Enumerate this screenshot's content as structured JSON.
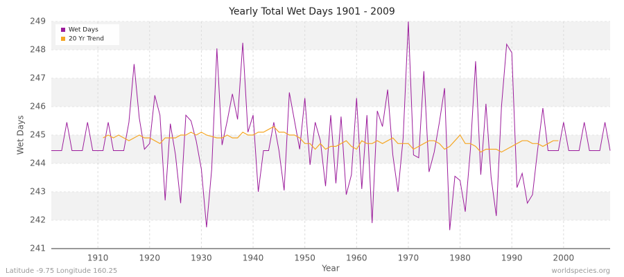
{
  "chart_data": {
    "type": "line",
    "title": "Yearly Total Wet Days 1901 - 2009",
    "x_label": "Year",
    "y_label": "Wet Days",
    "footer_left": "Latitude -9.75 Longitude 160.25",
    "footer_right": "worldspecies.org",
    "legend": "top-left",
    "grid": true,
    "xlim": [
      1901,
      2009
    ],
    "xticks": [
      1910,
      1920,
      1930,
      1940,
      1950,
      1960,
      1970,
      1980,
      1990,
      2000
    ],
    "ylim": [
      241,
      249
    ],
    "yticks": [
      241,
      242,
      243,
      244,
      245,
      246,
      247,
      248,
      249
    ],
    "x": [
      1901,
      1902,
      1903,
      1904,
      1905,
      1906,
      1907,
      1908,
      1909,
      1910,
      1911,
      1912,
      1913,
      1914,
      1915,
      1916,
      1917,
      1918,
      1919,
      1920,
      1921,
      1922,
      1923,
      1924,
      1925,
      1926,
      1927,
      1928,
      1929,
      1930,
      1931,
      1932,
      1933,
      1934,
      1935,
      1936,
      1937,
      1938,
      1939,
      1940,
      1941,
      1942,
      1943,
      1944,
      1945,
      1946,
      1947,
      1948,
      1949,
      1950,
      1951,
      1952,
      1953,
      1954,
      1955,
      1956,
      1957,
      1958,
      1959,
      1960,
      1961,
      1962,
      1963,
      1964,
      1965,
      1966,
      1967,
      1968,
      1969,
      1970,
      1971,
      1972,
      1973,
      1974,
      1975,
      1976,
      1977,
      1978,
      1979,
      1980,
      1981,
      1982,
      1983,
      1984,
      1985,
      1986,
      1987,
      1988,
      1989,
      1990,
      1991,
      1992,
      1993,
      1994,
      1995,
      1996,
      1997,
      1998,
      1999,
      2000,
      2001,
      2002,
      2003,
      2004,
      2005,
      2006,
      2007,
      2008,
      2009
    ],
    "series": [
      {
        "name": "Wet Days",
        "color": "#9b1b9b",
        "values": [
          244.45,
          244.45,
          244.45,
          245.45,
          244.45,
          244.45,
          244.45,
          245.45,
          244.45,
          244.45,
          244.45,
          245.45,
          244.45,
          244.45,
          244.45,
          245.45,
          247.5,
          245.6,
          244.5,
          244.7,
          246.4,
          245.7,
          242.7,
          245.4,
          244.3,
          242.6,
          245.7,
          245.5,
          244.8,
          243.8,
          241.75,
          243.8,
          248.05,
          244.65,
          245.5,
          246.45,
          245.55,
          248.25,
          245.1,
          245.7,
          243.0,
          244.45,
          244.45,
          245.45,
          244.45,
          243.05,
          246.5,
          245.5,
          244.5,
          246.3,
          243.95,
          245.45,
          244.8,
          243.2,
          245.7,
          243.3,
          245.65,
          242.9,
          243.6,
          246.3,
          243.1,
          245.7,
          241.9,
          245.85,
          245.3,
          246.6,
          244.3,
          243.0,
          244.9,
          249.0,
          244.3,
          244.2,
          247.25,
          243.7,
          244.4,
          245.45,
          246.65,
          241.65,
          243.55,
          243.4,
          242.3,
          244.5,
          247.6,
          243.6,
          246.1,
          243.5,
          242.15,
          246.0,
          248.2,
          247.9,
          243.15,
          243.65,
          242.6,
          242.9,
          244.5,
          245.95,
          244.45,
          244.45,
          244.45,
          245.45,
          244.45,
          244.45,
          244.45,
          245.45,
          244.45,
          244.45,
          244.45,
          245.45,
          244.45
        ]
      },
      {
        "name": "20 Yr Trend",
        "color": "#f5a623",
        "values": [
          null,
          null,
          null,
          null,
          null,
          null,
          null,
          null,
          null,
          null,
          244.9,
          245.0,
          244.9,
          245.0,
          244.9,
          244.8,
          244.9,
          245.0,
          244.9,
          244.9,
          244.8,
          244.7,
          244.9,
          244.9,
          244.9,
          245.0,
          245.0,
          245.1,
          245.0,
          245.1,
          245.0,
          244.95,
          244.9,
          244.9,
          245.0,
          244.9,
          244.9,
          245.1,
          245.0,
          245.0,
          245.1,
          245.1,
          245.2,
          245.3,
          245.1,
          245.1,
          245.0,
          245.0,
          244.9,
          244.7,
          244.7,
          244.5,
          244.7,
          244.5,
          244.6,
          244.6,
          244.7,
          244.8,
          244.6,
          244.5,
          244.8,
          244.7,
          244.7,
          244.8,
          244.7,
          244.8,
          244.9,
          244.7,
          244.7,
          244.7,
          244.5,
          244.6,
          244.7,
          244.8,
          244.8,
          244.7,
          244.5,
          244.6,
          244.8,
          245.0,
          244.7,
          244.7,
          244.6,
          244.4,
          244.5,
          244.5,
          244.5,
          244.4,
          244.5,
          244.6,
          244.7,
          244.8,
          244.8,
          244.7,
          244.7,
          244.6,
          244.7,
          244.8,
          244.8,
          null,
          null,
          null,
          null,
          null,
          null,
          null,
          null,
          null,
          null
        ]
      }
    ]
  }
}
